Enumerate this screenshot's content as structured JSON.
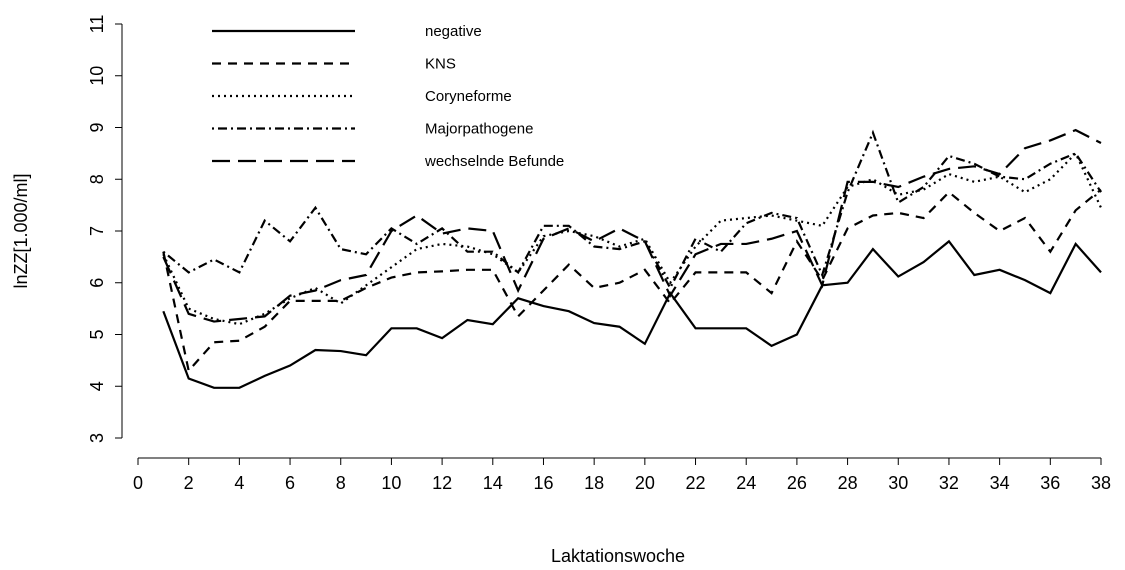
{
  "chart_data": {
    "type": "line",
    "x_label": "Laktationswoche",
    "y_label": "lnZZ[1.000/ml]",
    "x": [
      1,
      2,
      3,
      4,
      5,
      6,
      7,
      8,
      9,
      10,
      11,
      12,
      13,
      14,
      15,
      16,
      17,
      18,
      19,
      20,
      21,
      22,
      23,
      24,
      25,
      26,
      27,
      28,
      29,
      30,
      31,
      32,
      33,
      34,
      35,
      36,
      37,
      38
    ],
    "xlim": [
      0,
      38
    ],
    "xticks": [
      0,
      2,
      4,
      6,
      8,
      10,
      12,
      14,
      16,
      18,
      20,
      22,
      24,
      26,
      28,
      30,
      32,
      34,
      36,
      38
    ],
    "ylim": [
      3,
      11
    ],
    "yticks": [
      3,
      4,
      5,
      6,
      7,
      8,
      9,
      10,
      11
    ],
    "series": [
      {
        "name": "negative",
        "color": "#000000",
        "dash": "none",
        "values": [
          5.45,
          4.15,
          3.97,
          3.97,
          4.2,
          4.4,
          4.7,
          4.68,
          4.6,
          5.12,
          5.12,
          4.93,
          5.28,
          5.2,
          5.7,
          5.55,
          5.45,
          5.22,
          5.15,
          4.82,
          5.8,
          5.12,
          5.12,
          5.12,
          4.78,
          5.0,
          5.95,
          6.0,
          6.65,
          6.12,
          6.4,
          6.8,
          6.15,
          6.25,
          6.05,
          5.8,
          6.75,
          6.2
        ]
      },
      {
        "name": "KNS",
        "color": "#000000",
        "dash": "9 7",
        "values": [
          6.6,
          4.3,
          4.85,
          4.88,
          5.15,
          5.65,
          5.65,
          5.65,
          5.9,
          6.1,
          6.2,
          6.22,
          6.25,
          6.25,
          5.35,
          5.85,
          6.35,
          5.9,
          6.0,
          6.25,
          5.6,
          6.2,
          6.2,
          6.2,
          5.8,
          6.8,
          6.05,
          7.05,
          7.3,
          7.35,
          7.25,
          7.75,
          7.35,
          7.0,
          7.25,
          6.6,
          7.4,
          7.8
        ]
      },
      {
        "name": "Coryneforme",
        "color": "#000000",
        "dash": "2 4",
        "values": [
          6.55,
          5.5,
          5.3,
          5.2,
          5.4,
          5.7,
          5.9,
          5.6,
          5.95,
          6.3,
          6.65,
          6.75,
          6.7,
          6.55,
          6.2,
          6.9,
          7.0,
          6.9,
          6.7,
          6.85,
          6.0,
          6.7,
          7.2,
          7.25,
          7.3,
          7.2,
          7.1,
          7.85,
          8.0,
          7.7,
          7.8,
          8.1,
          7.95,
          8.05,
          7.75,
          8.0,
          8.5,
          7.45
        ]
      },
      {
        "name": "Majorpathogene",
        "color": "#000000",
        "dash": "2 4 9 4",
        "values": [
          6.6,
          6.2,
          6.45,
          6.2,
          7.2,
          6.8,
          7.45,
          6.65,
          6.55,
          7.05,
          6.75,
          7.05,
          6.6,
          6.6,
          6.2,
          7.1,
          7.1,
          6.7,
          6.65,
          6.8,
          5.9,
          6.85,
          6.6,
          7.15,
          7.35,
          7.25,
          6.15,
          7.75,
          8.9,
          7.55,
          7.85,
          8.45,
          8.3,
          8.05,
          8.0,
          8.3,
          8.5,
          7.75
        ]
      },
      {
        "name": "wechselnde Befunde",
        "color": "#000000",
        "dash": "18 8",
        "values": [
          6.5,
          5.4,
          5.25,
          5.3,
          5.35,
          5.75,
          5.85,
          6.05,
          6.15,
          7.0,
          7.3,
          6.95,
          7.05,
          7.0,
          5.85,
          6.85,
          7.05,
          6.8,
          7.05,
          6.8,
          5.75,
          6.55,
          6.75,
          6.75,
          6.85,
          7.0,
          5.95,
          7.95,
          7.95,
          7.85,
          8.05,
          8.2,
          8.25,
          8.1,
          8.6,
          8.75,
          8.95,
          8.7
        ]
      }
    ]
  }
}
